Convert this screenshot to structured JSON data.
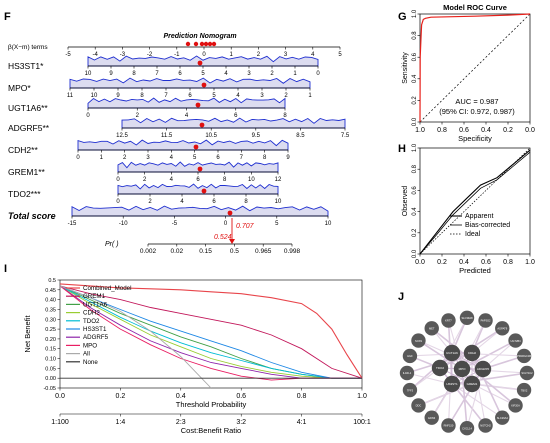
{
  "panels": {
    "F": "F",
    "G": "G",
    "H": "H",
    "I": "I",
    "J": "J"
  },
  "nomogram": {
    "title": "Prediction Nomogram",
    "axis_label": "β(X−m) terms",
    "rows": [
      {
        "name": "HS3ST1*"
      },
      {
        "name": "MPO*"
      },
      {
        "name": "UGT1A6**"
      },
      {
        "name": "ADGRF5**"
      },
      {
        "name": "CDH2**"
      },
      {
        "name": "GREM1**"
      },
      {
        "name": "TDO2***"
      }
    ],
    "total_label": "Total score",
    "total_value": "0.707",
    "pr_label": "Pr( )",
    "pr_value": "0.524"
  },
  "roc": {
    "title": "Model ROC Curve",
    "xlabel": "Specificity",
    "ylabel": "Sensitivity",
    "auc_text": "AUC = 0.987",
    "ci_text": "(95% CI: 0.972, 0.987)"
  },
  "calibration": {
    "xlabel": "Predicted",
    "ylabel": "Observed",
    "legend": [
      "Apparent",
      "Bias-corrected",
      "Ideal"
    ]
  },
  "dca": {
    "ylabel": "Net Benefit",
    "xlabel": "Threshold Probability",
    "x2label": "Cost:Benefit Ratio",
    "legend": [
      "Combined_Model",
      "GREM1",
      "UGT1A6",
      "CDH2",
      "TDO2",
      "HS3ST1",
      "ADGRF5",
      "MPO",
      "All",
      "None"
    ],
    "colors": [
      "#e8454b",
      "#c2185b",
      "#43a047",
      "#9acd32",
      "#00bcd4",
      "#1e88e5",
      "#8e24aa",
      "#e91e63",
      "#aaaaaa",
      "#333333"
    ]
  },
  "network": {
    "center_nodes": [
      "UGT1A6",
      "CDH2",
      "TDO2",
      "MPO",
      "ADGRF5",
      "HS3ST1",
      "GREM1"
    ],
    "outer_nodes": [
      "SLC39A8",
      "PAPSS2",
      "AGPAT9",
      "UGT2B4",
      "PPARGC1B",
      "SULT1C2",
      "TBX2",
      "KIF20A",
      "SLC26A4",
      "NOTCH2",
      "CXCL14",
      "RNF150",
      "EDN3",
      "DDC",
      "TFF3",
      "IL1RL1",
      "HGF",
      "SOX9",
      "MET",
      "KRT7"
    ]
  },
  "chart_data": [
    {
      "type": "scatter",
      "panel": "F",
      "title": "Prediction Nomogram",
      "axes": [
        {
          "name": "β(X−m) terms",
          "ticks": [
            "-5",
            "-4",
            "-3",
            "-2",
            "-1",
            "0",
            "1",
            "2",
            "3",
            "4",
            "5"
          ]
        },
        {
          "name": "HS3ST1*",
          "ticks": [
            "10",
            "9",
            "8",
            "7",
            "6",
            "5",
            "4",
            "3",
            "2",
            "1",
            "0"
          ]
        },
        {
          "name": "MPO*",
          "ticks": [
            "11",
            "10",
            "9",
            "8",
            "7",
            "6",
            "5",
            "4",
            "3",
            "2",
            "1"
          ]
        },
        {
          "name": "UGT1A6**",
          "ticks": [
            "0",
            "2",
            "4",
            "6",
            "8"
          ]
        },
        {
          "name": "ADGRF5**",
          "ticks": [
            "12.5",
            "11.5",
            "10.5",
            "9.5",
            "8.5",
            "7.5"
          ]
        },
        {
          "name": "CDH2**",
          "ticks": [
            "0",
            "1",
            "2",
            "3",
            "4",
            "5",
            "6",
            "7",
            "8",
            "9"
          ]
        },
        {
          "name": "GREM1**",
          "ticks": [
            "0",
            "2",
            "4",
            "6",
            "8",
            "10",
            "12"
          ]
        },
        {
          "name": "TDO2***",
          "ticks": [
            "0",
            "2",
            "4",
            "6",
            "8",
            "10"
          ]
        },
        {
          "name": "Total score",
          "ticks": [
            "-15",
            "-10",
            "-5",
            "0",
            "5",
            "10"
          ]
        },
        {
          "name": "Pr( )",
          "ticks": [
            "0.002",
            "0.02",
            "0.15",
            "0.5",
            "0.965",
            "0.998"
          ]
        }
      ]
    },
    {
      "type": "line",
      "panel": "G",
      "title": "Model ROC Curve",
      "xlabel": "Specificity",
      "ylabel": "Sensitivity",
      "x_ticks": [
        "1.0",
        "0.8",
        "0.6",
        "0.4",
        "0.2",
        "0.0"
      ],
      "y_ticks": [
        "0.0",
        "0.2",
        "0.4",
        "0.6",
        "0.8",
        "1.0"
      ],
      "series": [
        {
          "specificity": [
            1.0,
            0.998,
            0.99,
            0.985,
            0.97,
            0.95,
            0.9,
            0.7,
            0.5,
            0.2,
            0.0
          ],
          "sensitivity": [
            0.0,
            0.6,
            0.8,
            0.9,
            0.95,
            0.96,
            0.97,
            0.975,
            0.98,
            0.99,
            1.0
          ]
        }
      ]
    },
    {
      "type": "line",
      "panel": "H",
      "xlabel": "Predicted",
      "ylabel": "Observed",
      "x_ticks": [
        "0.0",
        "0.2",
        "0.4",
        "0.6",
        "0.8",
        "1.0"
      ],
      "y_ticks": [
        "0.0",
        "0.2",
        "0.4",
        "0.6",
        "0.8",
        "1.0"
      ],
      "series": [
        {
          "name": "Apparent",
          "x": [
            0.0,
            0.15,
            0.3,
            0.45,
            0.55,
            0.7,
            0.85,
            1.0
          ],
          "y": [
            0.0,
            0.2,
            0.4,
            0.55,
            0.65,
            0.72,
            0.85,
            0.98
          ]
        },
        {
          "name": "Bias-corrected",
          "x": [
            0.0,
            0.15,
            0.3,
            0.45,
            0.55,
            0.7,
            0.85,
            1.0
          ],
          "y": [
            0.0,
            0.18,
            0.37,
            0.52,
            0.62,
            0.7,
            0.83,
            0.96
          ]
        },
        {
          "name": "Ideal",
          "x": [
            0,
            1
          ],
          "y": [
            0,
            1
          ]
        }
      ]
    },
    {
      "type": "line",
      "panel": "I",
      "xlabel": "Threshold Probability",
      "ylabel": "Net Benefit",
      "x_ticks": [
        "0.0",
        "0.2",
        "0.4",
        "0.6",
        "0.8",
        "1.0"
      ],
      "y_ticks": [
        "-0.05",
        "0.00",
        "0.05",
        "0.10",
        "0.15",
        "0.20",
        "0.25",
        "0.30",
        "0.35",
        "0.40",
        "0.45",
        "0.5"
      ],
      "x2label": "Cost:Benefit Ratio",
      "x2_ticks": [
        "1:100",
        "1:4",
        "2:3",
        "3:2",
        "4:1",
        "100:1"
      ],
      "series": [
        {
          "name": "Combined_Model",
          "x": [
            0.0,
            0.1,
            0.2,
            0.3,
            0.4,
            0.5,
            0.6,
            0.7,
            0.8,
            0.85,
            0.9,
            0.95,
            1.0
          ],
          "y": [
            0.48,
            0.47,
            0.46,
            0.455,
            0.45,
            0.44,
            0.43,
            0.41,
            0.38,
            0.33,
            0.25,
            0.12,
            0.0
          ]
        },
        {
          "name": "GREM1",
          "x": [
            0.0,
            0.1,
            0.2,
            0.3,
            0.4,
            0.5,
            0.6,
            0.7,
            0.8,
            0.9,
            1.0
          ],
          "y": [
            0.47,
            0.43,
            0.4,
            0.36,
            0.33,
            0.3,
            0.27,
            0.22,
            0.15,
            0.05,
            0.0
          ]
        },
        {
          "name": "UGT1A6",
          "x": [
            0.0,
            0.1,
            0.2,
            0.3,
            0.4,
            0.5,
            0.6,
            0.7,
            0.8,
            0.9,
            1.0
          ],
          "y": [
            0.47,
            0.4,
            0.33,
            0.27,
            0.21,
            0.16,
            0.1,
            0.05,
            0.02,
            0.0,
            0.0
          ]
        },
        {
          "name": "CDH2",
          "x": [
            0.0,
            0.1,
            0.2,
            0.3,
            0.4,
            0.5,
            0.6,
            0.7,
            0.8,
            0.9,
            1.0
          ],
          "y": [
            0.47,
            0.38,
            0.3,
            0.22,
            0.16,
            0.1,
            0.06,
            0.03,
            0.01,
            0.0,
            0.0
          ]
        },
        {
          "name": "TDO2",
          "x": [
            0.0,
            0.1,
            0.2,
            0.3,
            0.4,
            0.5,
            0.6,
            0.7,
            0.8,
            0.9,
            1.0
          ],
          "y": [
            0.47,
            0.39,
            0.31,
            0.24,
            0.18,
            0.13,
            0.09,
            0.05,
            0.02,
            0.0,
            0.0
          ]
        },
        {
          "name": "HS3ST1",
          "x": [
            0.0,
            0.1,
            0.2,
            0.3,
            0.4,
            0.5,
            0.6,
            0.7,
            0.8,
            0.9,
            1.0
          ],
          "y": [
            0.47,
            0.41,
            0.35,
            0.29,
            0.24,
            0.19,
            0.14,
            0.08,
            0.03,
            0.0,
            0.0
          ]
        },
        {
          "name": "ADGRF5",
          "x": [
            0.0,
            0.1,
            0.2,
            0.3,
            0.4,
            0.5,
            0.6,
            0.7,
            0.8,
            0.9,
            1.0
          ],
          "y": [
            0.47,
            0.36,
            0.27,
            0.19,
            0.13,
            0.08,
            0.05,
            0.02,
            0.0,
            0.0,
            0.0
          ]
        },
        {
          "name": "MPO",
          "x": [
            0.0,
            0.1,
            0.2,
            0.3,
            0.4,
            0.5,
            0.6,
            0.7,
            0.8,
            0.9,
            1.0
          ],
          "y": [
            0.47,
            0.35,
            0.25,
            0.17,
            0.1,
            0.05,
            0.01,
            -0.01,
            0.0,
            0.0,
            0.0
          ]
        },
        {
          "name": "All",
          "x": [
            0.0,
            0.1,
            0.2,
            0.3,
            0.4,
            0.5
          ],
          "y": [
            0.47,
            0.41,
            0.34,
            0.24,
            0.11,
            -0.05
          ]
        },
        {
          "name": "None",
          "x": [
            0.0,
            1.0
          ],
          "y": [
            0.0,
            0.0
          ]
        }
      ]
    }
  ]
}
